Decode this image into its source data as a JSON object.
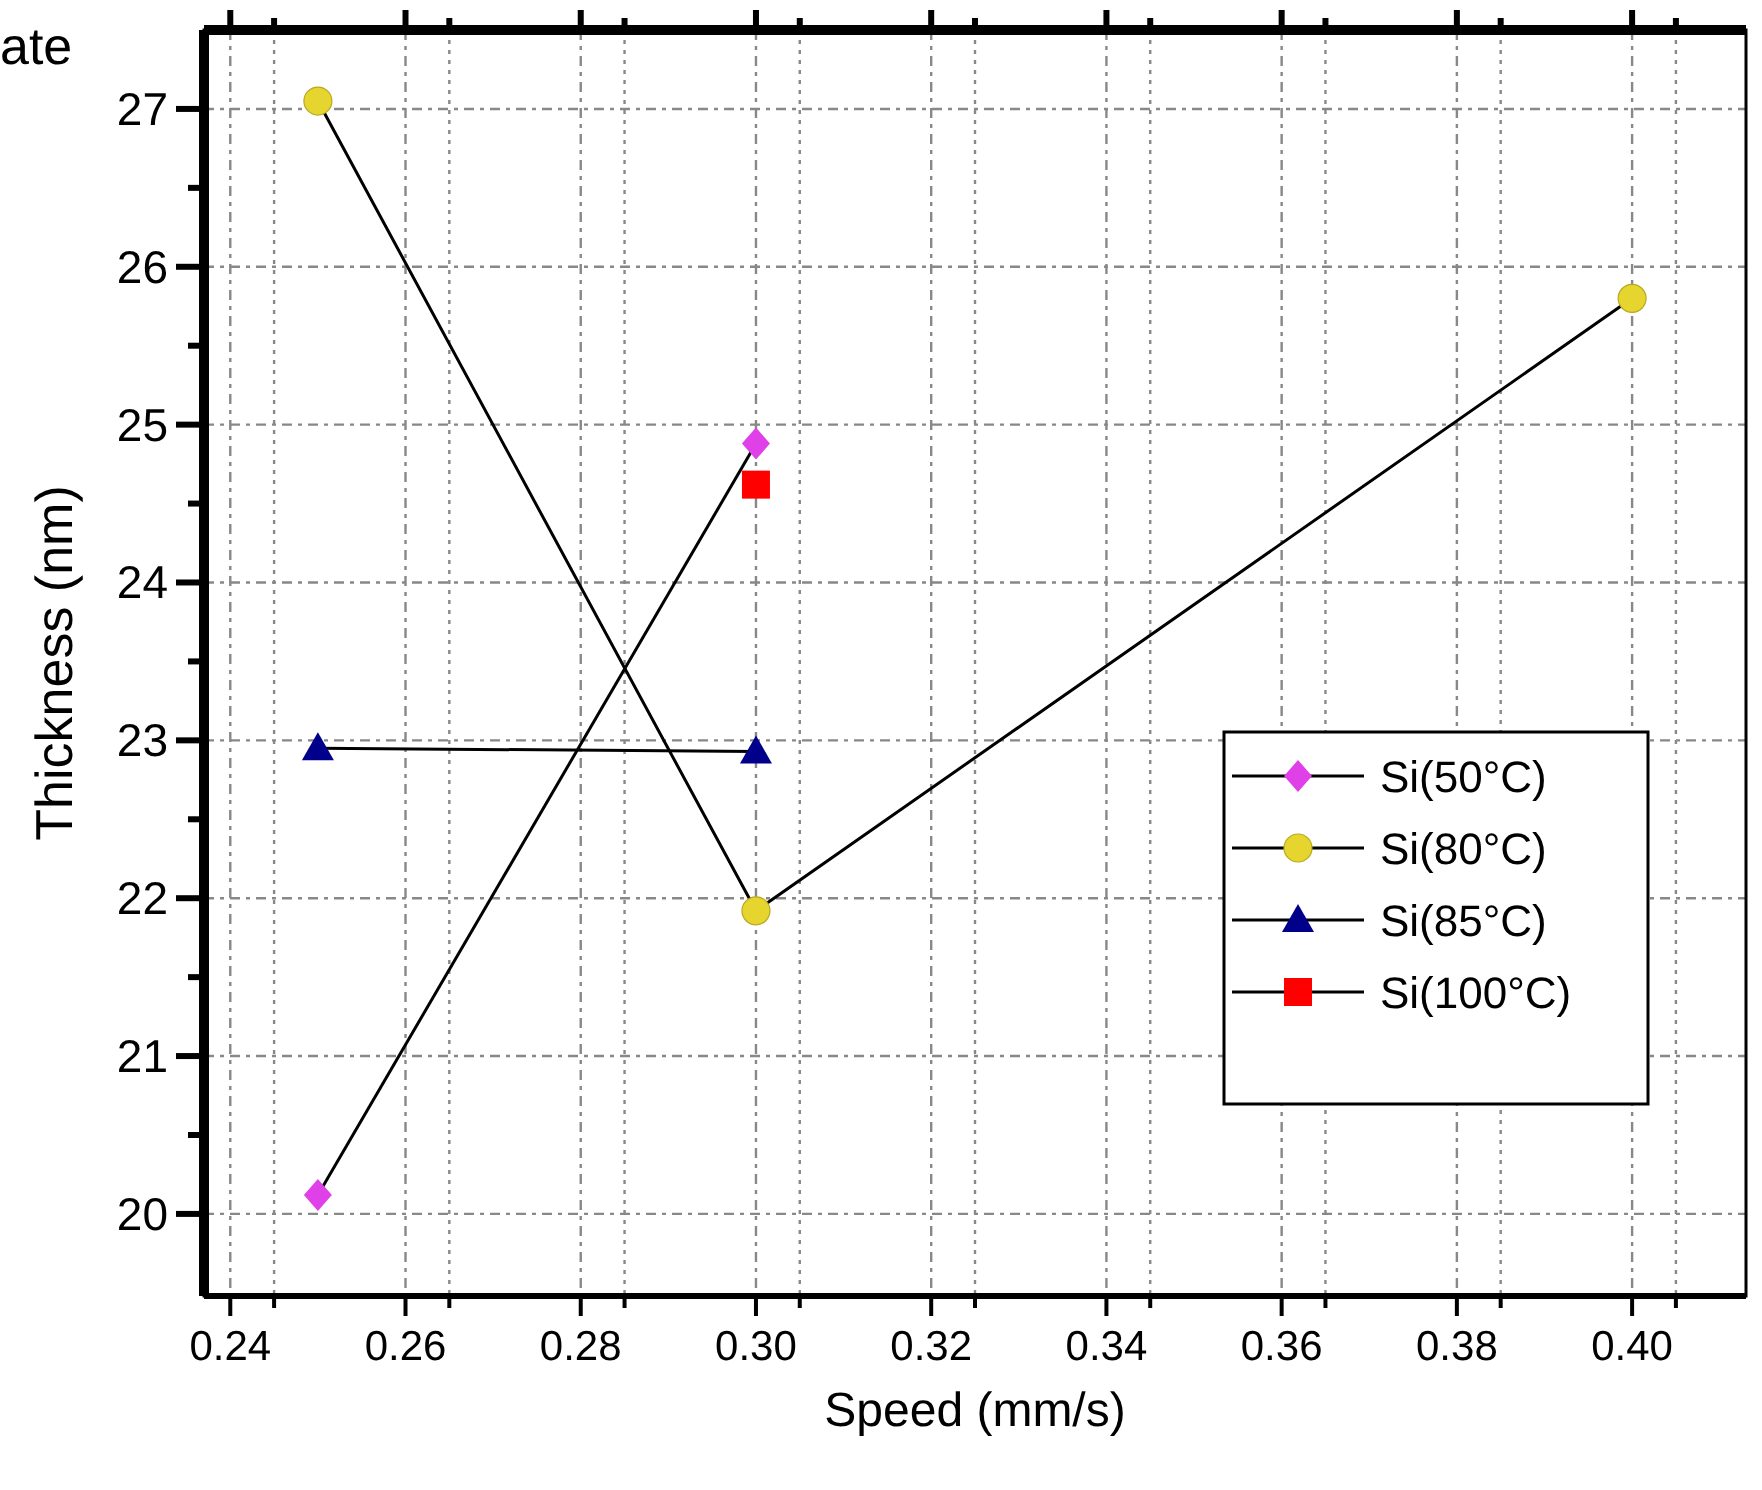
{
  "chart_data": {
    "type": "line",
    "title": "ate",
    "xlabel": "Speed (mm/s)",
    "ylabel": "Thickness (nm)",
    "xlim": [
      0.237,
      0.413
    ],
    "ylim": [
      19.48,
      27.5
    ],
    "xticks": [
      0.24,
      {
        "value": 0.245,
        "label": null
      },
      0.26,
      {
        "value": 0.265,
        "label": null
      },
      0.28,
      {
        "value": 0.285,
        "label": null
      },
      {
        "value": 0.3,
        "label": "0.30"
      },
      {
        "value": 0.305,
        "label": null
      },
      0.32,
      {
        "value": 0.325,
        "label": null
      },
      0.34,
      {
        "value": 0.345,
        "label": null
      },
      0.36,
      {
        "value": 0.365,
        "label": null
      },
      0.38,
      {
        "value": 0.385,
        "label": null
      },
      {
        "value": 0.4,
        "label": "0.40"
      },
      {
        "value": 0.405,
        "label": null
      }
    ],
    "yticks": [
      20,
      {
        "value": 20.5,
        "label": null
      },
      21,
      {
        "value": 21.5,
        "label": null
      },
      22,
      {
        "value": 22.5,
        "label": null
      },
      23,
      {
        "value": 23.5,
        "label": null
      },
      24,
      {
        "value": 24.5,
        "label": null
      },
      25,
      {
        "value": 25.5,
        "label": null
      },
      26,
      {
        "value": 26.5,
        "label": null
      },
      27
    ],
    "grid": true,
    "legend": "right",
    "series": [
      {
        "name": "Si(50°C)",
        "color": "#e040e8",
        "marker": "diamond",
        "x": [
          0.25,
          0.3
        ],
        "values": [
          20.12,
          24.88
        ]
      },
      {
        "name": "Si(80°C)",
        "color": "#e6d52e",
        "marker": "circle",
        "x": [
          0.25,
          0.3,
          0.4
        ],
        "values": [
          27.05,
          21.92,
          25.8
        ]
      },
      {
        "name": "Si(85°C)",
        "color": "#00008b",
        "marker": "triangle",
        "x": [
          0.25,
          0.3
        ],
        "values": [
          22.95,
          22.93
        ]
      },
      {
        "name": "Si(100°C)",
        "color": "#ff0000",
        "marker": "square",
        "x": [
          0.3
        ],
        "values": [
          24.62
        ]
      }
    ]
  }
}
